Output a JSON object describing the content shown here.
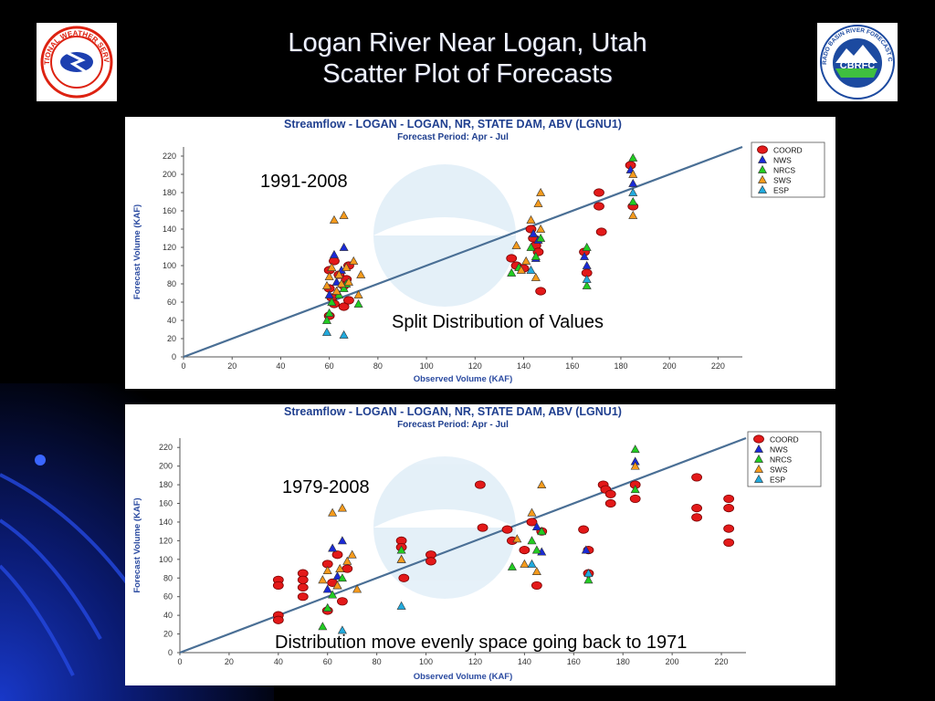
{
  "slide": {
    "title_line1": "Logan River Near Logan, Utah",
    "title_line2": "Scatter Plot of Forecasts",
    "logos": {
      "left": "NATIONAL WEATHER SERVICE",
      "right": "COLORADO BASIN RIVER FORECAST CENTER",
      "right_badge": "CBRFC"
    }
  },
  "colors": {
    "COORD": "#e31919",
    "NWS": "#1a2ad6",
    "NRCS": "#22cc22",
    "SWS": "#f59a1c",
    "ESP": "#22aadd",
    "line": "#4a6f95",
    "axis_text": "#2a4aa0",
    "title_text": "#1f3f8f"
  },
  "chart_data": [
    {
      "type": "scatter",
      "title": "Streamflow - LOGAN - LOGAN, NR, STATE DAM, ABV (LGNU1)",
      "subtitle": "Forecast Period: Apr - Jul",
      "xlabel": "Observed Volume (KAF)",
      "ylabel": "Forecast Volume (KAF)",
      "xlim": [
        0,
        230
      ],
      "ylim": [
        0,
        230
      ],
      "xticks": [
        0,
        20,
        40,
        60,
        80,
        100,
        120,
        140,
        160,
        180,
        200,
        220
      ],
      "yticks": [
        0,
        20,
        40,
        60,
        80,
        100,
        120,
        140,
        160,
        180,
        200,
        220
      ],
      "legend": [
        "COORD",
        "NWS",
        "NRCS",
        "SWS",
        "ESP"
      ],
      "legend_position": "top-right",
      "annotation_period": "1991-2008",
      "annotation_note": "Split Distribution of Values",
      "reference_line": {
        "from": [
          0,
          0
        ],
        "to": [
          230,
          230
        ]
      },
      "series": [
        {
          "name": "COORD",
          "x": [
            60,
            60,
            61,
            62,
            64,
            66,
            67,
            68,
            60,
            62,
            66,
            68,
            135,
            137,
            140,
            143,
            144,
            145,
            146,
            147,
            165,
            166,
            171,
            171,
            172,
            184,
            185
          ],
          "y": [
            95,
            75,
            65,
            105,
            90,
            55,
            85,
            100,
            45,
            58,
            78,
            62,
            108,
            100,
            97,
            140,
            130,
            122,
            115,
            72,
            115,
            92,
            180,
            165,
            137,
            210,
            165
          ]
        },
        {
          "name": "NWS",
          "x": [
            60,
            62,
            63,
            65,
            66,
            144,
            145,
            146,
            165,
            166,
            184,
            185
          ],
          "y": [
            68,
            112,
            82,
            95,
            120,
            135,
            108,
            128,
            110,
            100,
            205,
            190
          ]
        },
        {
          "name": "NRCS",
          "x": [
            59,
            60,
            61,
            63,
            64,
            66,
            67,
            72,
            135,
            138,
            143,
            145,
            147,
            166,
            166,
            185,
            185
          ],
          "y": [
            40,
            48,
            60,
            72,
            68,
            75,
            80,
            58,
            92,
            98,
            120,
            110,
            130,
            78,
            120,
            218,
            170
          ]
        },
        {
          "name": "SWS",
          "x": [
            59,
            60,
            61,
            62,
            63,
            64,
            65,
            66,
            67,
            68,
            70,
            72,
            73,
            137,
            139,
            141,
            143,
            145,
            146,
            147,
            147,
            185,
            185
          ],
          "y": [
            78,
            88,
            98,
            150,
            72,
            90,
            80,
            155,
            98,
            82,
            105,
            68,
            90,
            122,
            95,
            105,
            150,
            87,
            168,
            140,
            180,
            200,
            155
          ]
        },
        {
          "name": "ESP",
          "x": [
            59,
            66,
            143,
            166,
            185
          ],
          "y": [
            27,
            24,
            95,
            85,
            180
          ]
        }
      ]
    },
    {
      "type": "scatter",
      "title": "Streamflow - LOGAN - LOGAN, NR, STATE DAM, ABV (LGNU1)",
      "subtitle": "Forecast Period: Apr - Jul",
      "xlabel": "Observed Volume (KAF)",
      "ylabel": "Forecast Volume (KAF)",
      "xlim": [
        0,
        230
      ],
      "ylim": [
        0,
        230
      ],
      "xticks": [
        0,
        20,
        40,
        60,
        80,
        100,
        120,
        140,
        160,
        180,
        200,
        220
      ],
      "yticks": [
        0,
        20,
        40,
        60,
        80,
        100,
        120,
        140,
        160,
        180,
        200,
        220
      ],
      "legend": [
        "COORD",
        "NWS",
        "NRCS",
        "SWS",
        "ESP"
      ],
      "legend_position": "top-right",
      "annotation_period": "1979-2008",
      "annotation_note": "Distribution move evenly space going back to 1971",
      "reference_line": {
        "from": [
          0,
          0
        ],
        "to": [
          230,
          230
        ]
      },
      "series": [
        {
          "name": "COORD",
          "x": [
            40,
            40,
            40,
            40,
            50,
            50,
            50,
            50,
            60,
            62,
            64,
            66,
            68,
            60,
            90,
            90,
            91,
            102,
            102,
            122,
            123,
            133,
            135,
            140,
            143,
            147,
            145,
            164,
            166,
            166,
            172,
            173,
            175,
            175,
            185,
            185,
            210,
            210,
            210,
            223,
            223,
            223,
            223
          ],
          "y": [
            78,
            72,
            40,
            35,
            85,
            78,
            70,
            60,
            95,
            75,
            105,
            55,
            90,
            45,
            120,
            113,
            80,
            105,
            98,
            180,
            134,
            132,
            120,
            110,
            140,
            130,
            72,
            132,
            85,
            110,
            180,
            175,
            160,
            170,
            180,
            165,
            188,
            155,
            145,
            165,
            155,
            133,
            118
          ]
        },
        {
          "name": "NWS",
          "x": [
            60,
            62,
            64,
            66,
            90,
            145,
            147,
            165,
            185
          ],
          "y": [
            68,
            112,
            82,
            120,
            100,
            135,
            108,
            110,
            205
          ]
        },
        {
          "name": "NRCS",
          "x": [
            58,
            60,
            62,
            64,
            66,
            90,
            135,
            143,
            145,
            147,
            166,
            185,
            185
          ],
          "y": [
            28,
            48,
            62,
            72,
            80,
            110,
            92,
            120,
            110,
            130,
            78,
            218,
            175
          ]
        },
        {
          "name": "SWS",
          "x": [
            58,
            60,
            62,
            64,
            65,
            66,
            68,
            70,
            72,
            90,
            137,
            140,
            143,
            145,
            147,
            185
          ],
          "y": [
            78,
            88,
            150,
            72,
            90,
            155,
            98,
            105,
            68,
            100,
            122,
            95,
            150,
            87,
            180,
            200
          ]
        },
        {
          "name": "ESP",
          "x": [
            66,
            90,
            143,
            166
          ],
          "y": [
            24,
            50,
            95,
            85
          ]
        }
      ]
    }
  ]
}
